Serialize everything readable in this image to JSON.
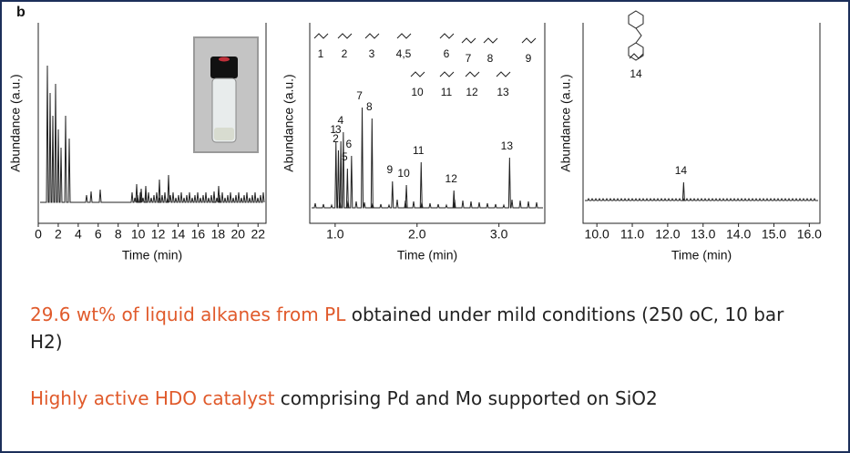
{
  "figure": {
    "panel_label": "b",
    "panels": [
      {
        "y_label": "Abundance (a.u.)",
        "x_label": "Time (min)",
        "xlim": [
          0,
          22.8
        ],
        "xticks": [
          0,
          2,
          4,
          6,
          8,
          10,
          12,
          14,
          16,
          18,
          20,
          22
        ]
      },
      {
        "y_label": "Abundance (a.u.)",
        "x_label": "Time (min)",
        "xlim": [
          0.69,
          3.56
        ],
        "xticks": [
          {
            "value": 1,
            "label": "1.0"
          },
          {
            "value": 2,
            "label": "2.0"
          },
          {
            "value": 3,
            "label": "3.0"
          }
        ],
        "peaks": [
          {
            "label": "1",
            "time": 1.01
          },
          {
            "label": "3",
            "time": 1.07
          },
          {
            "label": "2",
            "time": 1.04
          },
          {
            "label": "4",
            "time": 1.1
          },
          {
            "label": "5",
            "time": 1.15
          },
          {
            "label": "6",
            "time": 1.2
          },
          {
            "label": "7",
            "time": 1.33
          },
          {
            "label": "8",
            "time": 1.45
          },
          {
            "label": "9",
            "time": 1.7
          },
          {
            "label": "10",
            "time": 1.87
          },
          {
            "label": "11",
            "time": 2.05
          },
          {
            "label": "12",
            "time": 2.45
          },
          {
            "label": "13",
            "time": 3.13
          }
        ],
        "structures": [
          "1",
          "2",
          "3",
          "4,5",
          "6",
          "7",
          "8",
          "9",
          "10",
          "11",
          "12",
          "13"
        ]
      },
      {
        "y_label": "Abundance (a.u.)",
        "x_label": "Time (min)",
        "xlim": [
          9.61,
          16.3
        ],
        "xticks": [
          {
            "value": 10,
            "label": "10.0"
          },
          {
            "value": 11,
            "label": "11.0"
          },
          {
            "value": 12,
            "label": "12.0"
          },
          {
            "value": 13,
            "label": "13.0"
          },
          {
            "value": 14,
            "label": "14.0"
          },
          {
            "value": 15,
            "label": "15.0"
          },
          {
            "value": 16,
            "label": "16.0"
          }
        ],
        "peaks": [
          {
            "label": "14",
            "time": 12.45
          }
        ],
        "structures": [
          "14"
        ]
      }
    ]
  },
  "notes": [
    {
      "highlight": "29.6 wt% of liquid alkanes from PL",
      "text": " obtained under mild conditions (250 oC, 10 bar H2)"
    },
    {
      "highlight": "Highly active HDO catalyst",
      "text": " comprising Pd and Mo supported on SiO2"
    }
  ]
}
